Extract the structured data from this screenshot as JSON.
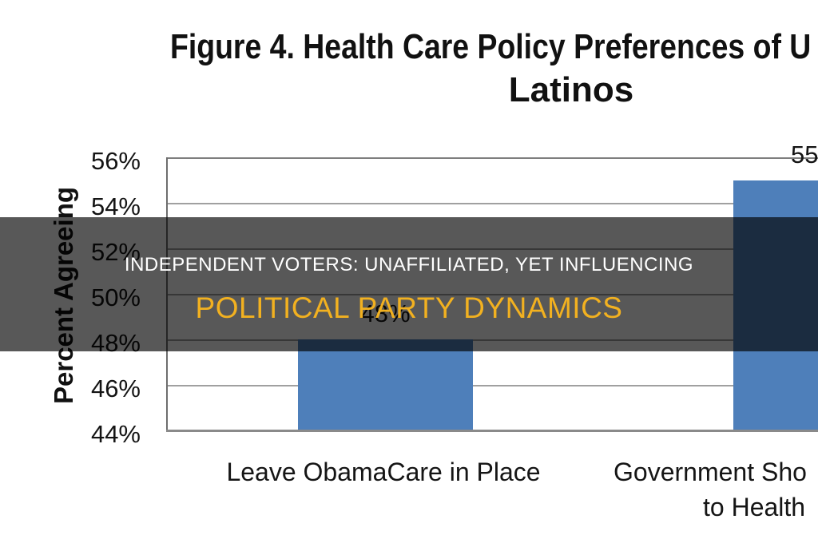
{
  "title": {
    "line1": "Figure 4. Health Care Policy Preferences of U",
    "line2": "Latinos"
  },
  "overlay": {
    "line1": "INDEPENDENT VOTERS: UNAFFILIATED, YET INFLUENCING",
    "line2": "POLITICAL PARTY DYNAMICS",
    "text_color": "#FFFFFF",
    "accent_color": "#F2B120",
    "background": "rgba(0,0,0,0.655)"
  },
  "chart_data": {
    "type": "bar",
    "title": "Figure 4. Health Care Policy Preferences of U Latinos",
    "ylabel": "Percent Agreeing",
    "xlabel": "",
    "categories": [
      "Leave ObamaCare in Place",
      "Government Sho to Health"
    ],
    "category_display": {
      "cat1": "Leave ObamaCare in Place",
      "cat2_line1": "Government Sho",
      "cat2_line2": "to Health"
    },
    "values": [
      48,
      55
    ],
    "data_labels": [
      "48%",
      "55"
    ],
    "ylim": [
      44,
      56
    ],
    "ytick_step": 2,
    "yticks": [
      "56%",
      "54%",
      "52%",
      "50%",
      "48%",
      "46%",
      "44%"
    ],
    "bar_color": "#4E7FBA",
    "grid": true,
    "legend": "none",
    "truncated_right": true
  }
}
